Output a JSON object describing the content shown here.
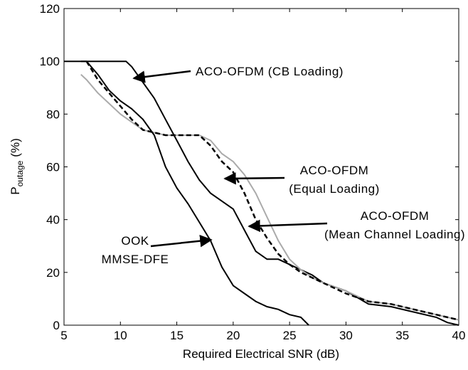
{
  "chart_data": {
    "type": "line",
    "xlabel": "Required Electrical SNR (dB)",
    "ylabel": {
      "main": "P",
      "sub": "outage",
      "unit": "(%)"
    },
    "xlim": [
      5,
      40
    ],
    "xticks": [
      5,
      10,
      15,
      20,
      25,
      30,
      35,
      40
    ],
    "ylim": [
      0,
      120
    ],
    "yticks": [
      0,
      20,
      40,
      60,
      80,
      100,
      120
    ],
    "series": [
      {
        "color": "#000000",
        "dash": false,
        "x": [
          5,
          10.5,
          11,
          12,
          13,
          14,
          15,
          16,
          17,
          18,
          19,
          20,
          21,
          22,
          23,
          24,
          25,
          26,
          27,
          28,
          30,
          32,
          34,
          36,
          38,
          39,
          40
        ],
        "values": [
          100,
          100,
          98,
          92,
          86,
          78,
          70,
          62,
          55,
          50,
          47,
          44,
          36,
          28,
          25,
          25,
          23,
          21,
          19,
          16,
          13,
          8,
          7,
          5,
          3,
          1,
          0
        ]
      },
      {
        "color": "#aaaaaa",
        "dash": false,
        "x": [
          6.5,
          7,
          8,
          9,
          10,
          11,
          12,
          13,
          14,
          15,
          16,
          17,
          18,
          19,
          20,
          21,
          22,
          23,
          24,
          25,
          26,
          27,
          28,
          30,
          32,
          34,
          36,
          38,
          40
        ],
        "values": [
          95,
          93,
          88,
          84,
          80,
          77,
          74,
          73,
          72,
          72,
          72,
          72,
          70,
          65,
          62,
          57,
          50,
          41,
          32,
          25,
          21,
          18,
          16,
          13,
          9,
          8,
          6,
          4,
          2
        ]
      },
      {
        "color": "#000000",
        "dash": true,
        "x": [
          7,
          8,
          9,
          10,
          11,
          12,
          13,
          14,
          15,
          16,
          17,
          18,
          19,
          20,
          21,
          22,
          23,
          24,
          25,
          26,
          27,
          28,
          30,
          32,
          34,
          36,
          38,
          40
        ],
        "values": [
          100,
          93,
          88,
          83,
          78,
          74,
          73,
          72,
          72,
          72,
          72,
          68,
          62,
          58,
          50,
          40,
          33,
          27,
          23,
          20,
          18,
          16,
          12,
          9,
          8,
          6,
          4,
          2
        ]
      },
      {
        "color": "#000000",
        "dash": false,
        "x": [
          6.5,
          7,
          8,
          9,
          10,
          11,
          12,
          13,
          14,
          15,
          16,
          17,
          18,
          19,
          20,
          21,
          22,
          23,
          24,
          25,
          26,
          26.7
        ],
        "values": [
          100,
          100,
          95,
          89,
          85,
          82,
          78,
          72,
          60,
          52,
          46,
          39,
          32,
          22,
          15,
          12,
          9,
          7,
          6,
          4,
          3,
          0
        ]
      }
    ],
    "annotations": [
      {
        "lines": [
          "ACO-OFDM (CB Loading)"
        ]
      },
      {
        "lines": [
          "ACO-OFDM",
          "(Equal Loading)"
        ]
      },
      {
        "lines": [
          "ACO-OFDM",
          "(Mean Channel Loading)"
        ]
      },
      {
        "lines": [
          "OOK",
          "MMSE-DFE"
        ]
      }
    ]
  }
}
